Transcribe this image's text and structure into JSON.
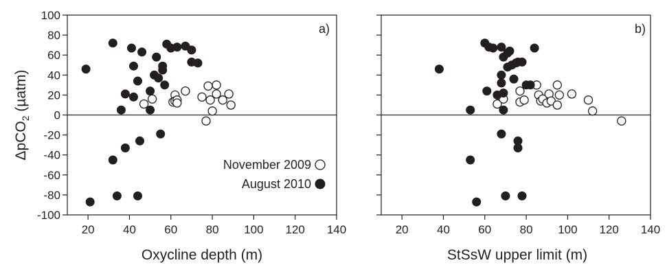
{
  "chart_data": [
    {
      "type": "scatter",
      "panel_label": "a)",
      "xlabel": "Oxycline depth (m)",
      "ylabel": "ΔpCO₂ (µatm)",
      "ylabel_parts": {
        "pre": "ΔpCO",
        "sub": "2",
        "post": " (µatm)"
      },
      "xlim": [
        10,
        140
      ],
      "ylim": [
        -100,
        100
      ],
      "xticks": [
        20,
        40,
        60,
        80,
        100,
        120,
        140
      ],
      "yticks": [
        -100,
        -80,
        -60,
        -40,
        -20,
        0,
        20,
        40,
        60,
        80,
        100
      ],
      "zero_line": true,
      "series": [
        {
          "name": "November 2009",
          "marker": "open-circle",
          "points": [
            [
              47,
              11
            ],
            [
              51,
              16
            ],
            [
              62,
              20
            ],
            [
              61,
              13
            ],
            [
              62,
              14
            ],
            [
              63,
              15
            ],
            [
              63,
              12
            ],
            [
              67,
              24
            ],
            [
              75,
              18
            ],
            [
              78,
              29
            ],
            [
              77,
              -6
            ],
            [
              79,
              15
            ],
            [
              80,
              4
            ],
            [
              82,
              30
            ],
            [
              82,
              21
            ],
            [
              85,
              15
            ],
            [
              88,
              21
            ],
            [
              89,
              10
            ]
          ]
        },
        {
          "name": "August 2010",
          "marker": "filled-circle",
          "points": [
            [
              19,
              46
            ],
            [
              21,
              -87
            ],
            [
              32,
              72
            ],
            [
              32,
              -45
            ],
            [
              34,
              -81
            ],
            [
              36,
              5
            ],
            [
              38,
              21
            ],
            [
              38,
              -33
            ],
            [
              41,
              67
            ],
            [
              42,
              49
            ],
            [
              42,
              18
            ],
            [
              44,
              34
            ],
            [
              44,
              -81
            ],
            [
              45,
              -26
            ],
            [
              46,
              63
            ],
            [
              50,
              24
            ],
            [
              50,
              5
            ],
            [
              52,
              40
            ],
            [
              53,
              58
            ],
            [
              54,
              37
            ],
            [
              55,
              -19
            ],
            [
              56,
              45
            ],
            [
              56,
              49
            ],
            [
              57,
              30
            ],
            [
              58,
              71
            ],
            [
              60,
              67
            ],
            [
              63,
              68
            ],
            [
              67,
              69
            ],
            [
              70,
              65
            ],
            [
              70,
              53
            ],
            [
              73,
              52
            ]
          ]
        }
      ],
      "legend": {
        "position": "lower-right",
        "entries": [
          {
            "label": "November 2009",
            "marker": "open-circle"
          },
          {
            "label": "August 2010",
            "marker": "filled-circle"
          }
        ]
      }
    },
    {
      "type": "scatter",
      "panel_label": "b)",
      "xlabel": "StSsW upper limit (m)",
      "xlim": [
        10,
        140
      ],
      "ylim": [
        -100,
        100
      ],
      "xticks": [
        20,
        40,
        60,
        80,
        100,
        120,
        140
      ],
      "zero_line": true,
      "series": [
        {
          "name": "November 2009",
          "marker": "open-circle",
          "points": [
            [
              66,
              11
            ],
            [
              68,
              18
            ],
            [
              69,
              16
            ],
            [
              77,
              13
            ],
            [
              77,
              24
            ],
            [
              79,
              15
            ],
            [
              85,
              30
            ],
            [
              86,
              20
            ],
            [
              87,
              14
            ],
            [
              88,
              16
            ],
            [
              90,
              12
            ],
            [
              91,
              21
            ],
            [
              92,
              14
            ],
            [
              95,
              30
            ],
            [
              95,
              10
            ],
            [
              96,
              20
            ],
            [
              102,
              21
            ],
            [
              110,
              15
            ],
            [
              112,
              4
            ],
            [
              126,
              -6
            ]
          ]
        },
        {
          "name": "August 2010",
          "marker": "filled-circle",
          "points": [
            [
              38,
              46
            ],
            [
              53,
              5
            ],
            [
              53,
              -45
            ],
            [
              56,
              -87
            ],
            [
              60,
              72
            ],
            [
              61,
              24
            ],
            [
              62,
              68
            ],
            [
              64,
              67
            ],
            [
              66,
              20
            ],
            [
              68,
              68
            ],
            [
              68,
              40
            ],
            [
              68,
              32
            ],
            [
              68,
              -19
            ],
            [
              69,
              58
            ],
            [
              69,
              22
            ],
            [
              69,
              5
            ],
            [
              70,
              -81
            ],
            [
              71,
              62
            ],
            [
              71,
              48
            ],
            [
              72,
              64
            ],
            [
              73,
              50
            ],
            [
              75,
              52
            ],
            [
              76,
              53
            ],
            [
              76,
              -26
            ],
            [
              76,
              -33
            ],
            [
              78,
              -81
            ],
            [
              78,
              53
            ],
            [
              80,
              30
            ],
            [
              82,
              30
            ],
            [
              84,
              67
            ],
            [
              74,
              36
            ]
          ]
        }
      ]
    }
  ]
}
